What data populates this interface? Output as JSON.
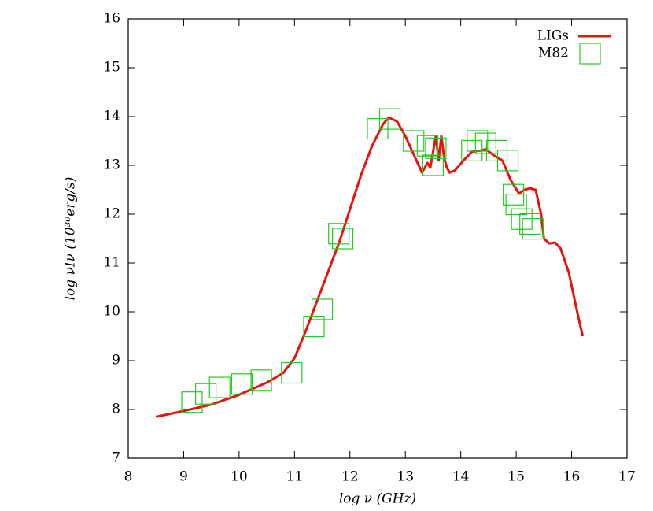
{
  "chart_data": {
    "type": "line",
    "xlabel": "log ν (GHz)",
    "ylabel": "log νIν (10³⁰erg/s)",
    "xlim": [
      8,
      17
    ],
    "ylim": [
      7,
      16
    ],
    "xticks": [
      8,
      9,
      10,
      11,
      12,
      13,
      14,
      15,
      16,
      17
    ],
    "yticks": [
      7,
      8,
      9,
      10,
      11,
      12,
      13,
      14,
      15,
      16
    ],
    "legend": "top-right",
    "series": [
      {
        "name": "LIGs",
        "type": "line",
        "color": "#e8120e",
        "x": [
          8.5,
          9,
          9.5,
          10,
          10.5,
          10.8,
          11,
          11.2,
          11.5,
          11.8,
          12,
          12.2,
          12.4,
          12.6,
          12.7,
          12.85,
          13,
          13.2,
          13.3,
          13.4,
          13.45,
          13.55,
          13.6,
          13.65,
          13.7,
          13.75,
          13.8,
          13.9,
          14.05,
          14.2,
          14.35,
          14.45,
          14.6,
          14.75,
          14.9,
          15.05,
          15.15,
          15.25,
          15.35,
          15.45,
          15.5,
          15.6,
          15.7,
          15.8,
          15.95,
          16.1,
          16.2
        ],
        "values": [
          7.85,
          7.97,
          8.1,
          8.3,
          8.55,
          8.75,
          9.05,
          9.6,
          10.5,
          11.4,
          12.1,
          12.8,
          13.4,
          13.85,
          13.98,
          13.9,
          13.6,
          13.1,
          12.85,
          13.05,
          12.95,
          13.6,
          13.1,
          13.6,
          13.15,
          12.95,
          12.85,
          12.9,
          13.1,
          13.28,
          13.3,
          13.33,
          13.2,
          13.1,
          12.7,
          12.42,
          12.5,
          12.53,
          12.5,
          12.0,
          11.5,
          11.4,
          11.42,
          11.3,
          10.8,
          10.0,
          9.5
        ]
      },
      {
        "name": "M82",
        "type": "scatter",
        "color": "#22cc22",
        "x": [
          9.15,
          9.4,
          9.65,
          10.05,
          10.4,
          10.95,
          11.35,
          11.5,
          11.8,
          11.87,
          12.5,
          12.72,
          13.15,
          13.4,
          13.5,
          13.55,
          14.2,
          14.3,
          14.45,
          14.65,
          14.85,
          14.95,
          15.0,
          15.1,
          15.25,
          15.3
        ],
        "values": [
          8.15,
          8.32,
          8.45,
          8.52,
          8.6,
          8.75,
          9.7,
          10.05,
          11.6,
          11.5,
          13.75,
          13.95,
          13.5,
          13.4,
          13.0,
          13.35,
          13.3,
          13.5,
          13.45,
          13.3,
          13.1,
          12.4,
          12.2,
          11.9,
          11.8,
          11.7
        ]
      }
    ]
  }
}
